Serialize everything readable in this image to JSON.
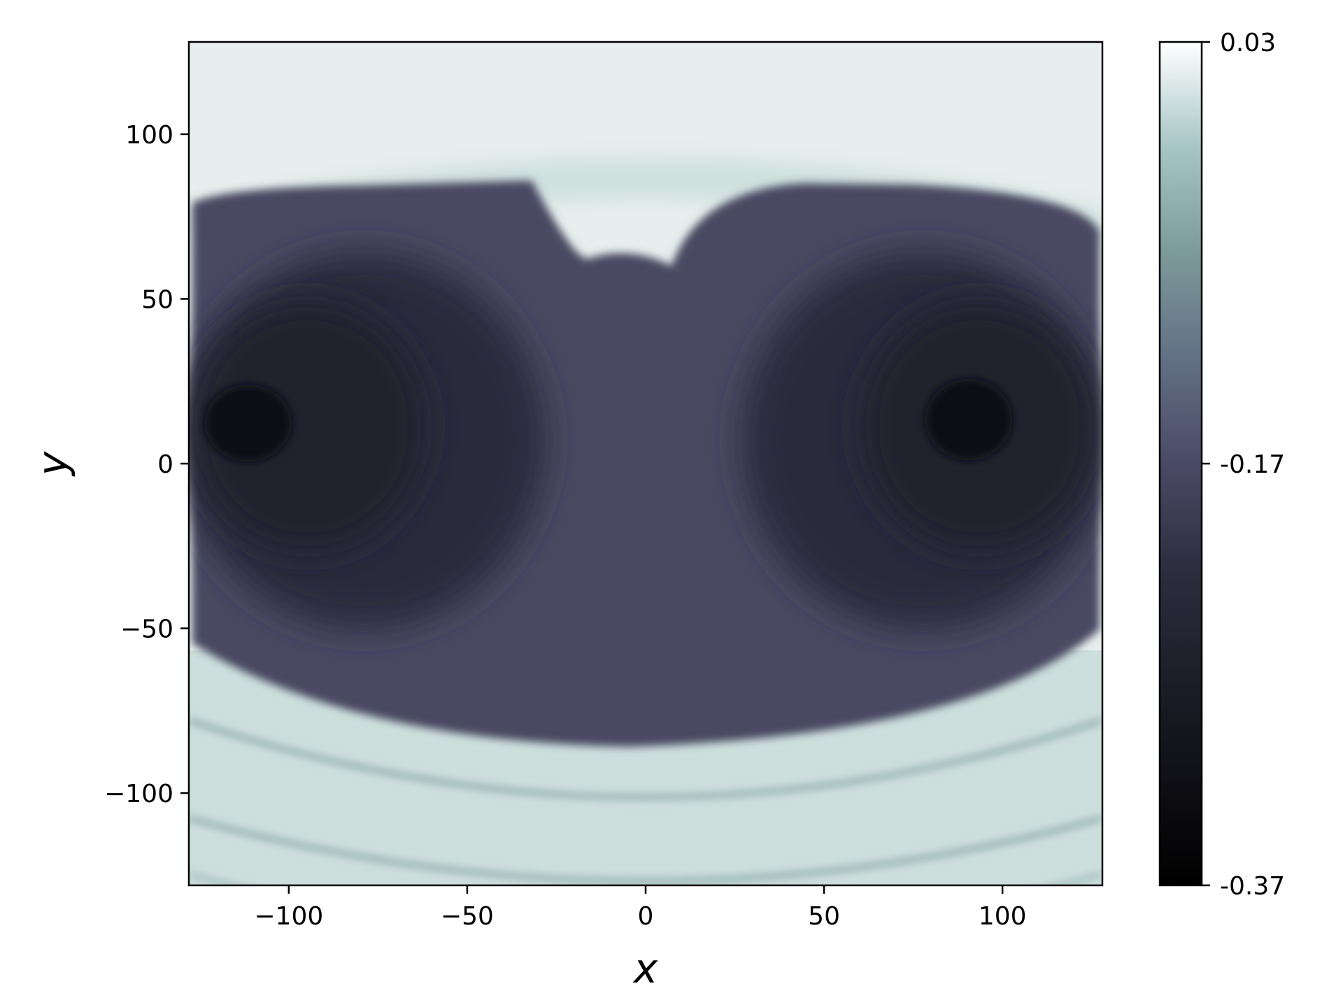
{
  "chart_data": {
    "type": "heatmap",
    "colormap": "bone",
    "xlabel": "x",
    "ylabel": "y",
    "xlim": [
      -128,
      128
    ],
    "ylim": [
      -128,
      128
    ],
    "x_ticks": [
      -100,
      -50,
      0,
      50,
      100
    ],
    "y_ticks": [
      100,
      50,
      0,
      -50,
      -100
    ],
    "x_tick_labels": [
      "−100",
      "−50",
      "0",
      "50",
      "100"
    ],
    "y_tick_labels": [
      "100",
      "50",
      "0",
      "−50",
      "−100"
    ],
    "colorbar": {
      "min": -0.37,
      "max": 0.03,
      "ticks": [
        0.03,
        -0.17,
        -0.37
      ],
      "tick_labels": [
        "0.03",
        "-0.17",
        "-0.37"
      ]
    },
    "field_features": {
      "background_value": 0.0,
      "central_region_value": -0.21,
      "lobe_core_value": -0.3,
      "hot_spot_value": -0.36,
      "hot_spot_centers": [
        [
          -110,
          10
        ],
        [
          90,
          12
        ]
      ],
      "lobe_centers": [
        [
          -70,
          5
        ],
        [
          70,
          5
        ]
      ],
      "dark_region_y_range": [
        -85,
        84
      ],
      "upper_band_value": -0.05,
      "lower_arc_value": -0.1,
      "lower_arcs_y_at_center": [
        -95,
        -110,
        -125
      ]
    }
  }
}
